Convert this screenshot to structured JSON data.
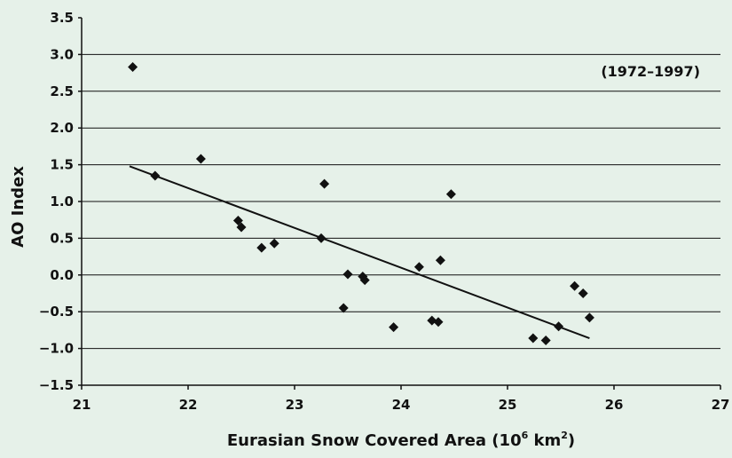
{
  "chart_data": {
    "type": "scatter",
    "title": "",
    "xlabel": "Eurasian Snow Covered Area (10",
    "xlabel_unit_exp": "6",
    "xlabel_unit": " km",
    "xlabel_unit_exp2": "2",
    "xlabel_close": ")",
    "ylabel": "AO Index",
    "annotation": "(1972–1997)",
    "xlim": [
      21,
      27
    ],
    "ylim": [
      -1.5,
      3.5
    ],
    "x_ticks": [
      21,
      22,
      23,
      24,
      25,
      26,
      27
    ],
    "y_ticks": [
      3.5,
      3.0,
      2.5,
      2.0,
      1.5,
      1.0,
      0.5,
      0.0,
      -0.5,
      -1.0,
      -1.5
    ],
    "x_tick_labels": [
      "21",
      "22",
      "23",
      "24",
      "25",
      "26",
      "27"
    ],
    "y_tick_labels": [
      "3.5",
      "3.0",
      "2.5",
      "2.0",
      "1.5",
      "1.0",
      "0.5",
      "0.0",
      "−0.5",
      "−1.0",
      "−1.5"
    ],
    "grid": true,
    "points": [
      {
        "x": 21.48,
        "y": 2.83
      },
      {
        "x": 21.69,
        "y": 1.35
      },
      {
        "x": 22.12,
        "y": 1.58
      },
      {
        "x": 22.47,
        "y": 0.74
      },
      {
        "x": 22.5,
        "y": 0.65
      },
      {
        "x": 22.69,
        "y": 0.37
      },
      {
        "x": 22.81,
        "y": 0.43
      },
      {
        "x": 23.25,
        "y": 0.5
      },
      {
        "x": 23.28,
        "y": 1.24
      },
      {
        "x": 23.46,
        "y": -0.45
      },
      {
        "x": 23.5,
        "y": 0.01
      },
      {
        "x": 23.64,
        "y": -0.02
      },
      {
        "x": 23.66,
        "y": -0.07
      },
      {
        "x": 23.93,
        "y": -0.71
      },
      {
        "x": 24.17,
        "y": 0.11
      },
      {
        "x": 24.29,
        "y": -0.62
      },
      {
        "x": 24.35,
        "y": -0.64
      },
      {
        "x": 24.37,
        "y": 0.2
      },
      {
        "x": 24.47,
        "y": 1.1
      },
      {
        "x": 25.24,
        "y": -0.86
      },
      {
        "x": 25.36,
        "y": -0.89
      },
      {
        "x": 25.48,
        "y": -0.7
      },
      {
        "x": 25.63,
        "y": -0.15
      },
      {
        "x": 25.71,
        "y": -0.25
      },
      {
        "x": 25.77,
        "y": -0.58
      }
    ],
    "trendline": {
      "x1": 21.45,
      "y1": 1.48,
      "x2": 25.77,
      "y2": -0.86
    }
  }
}
